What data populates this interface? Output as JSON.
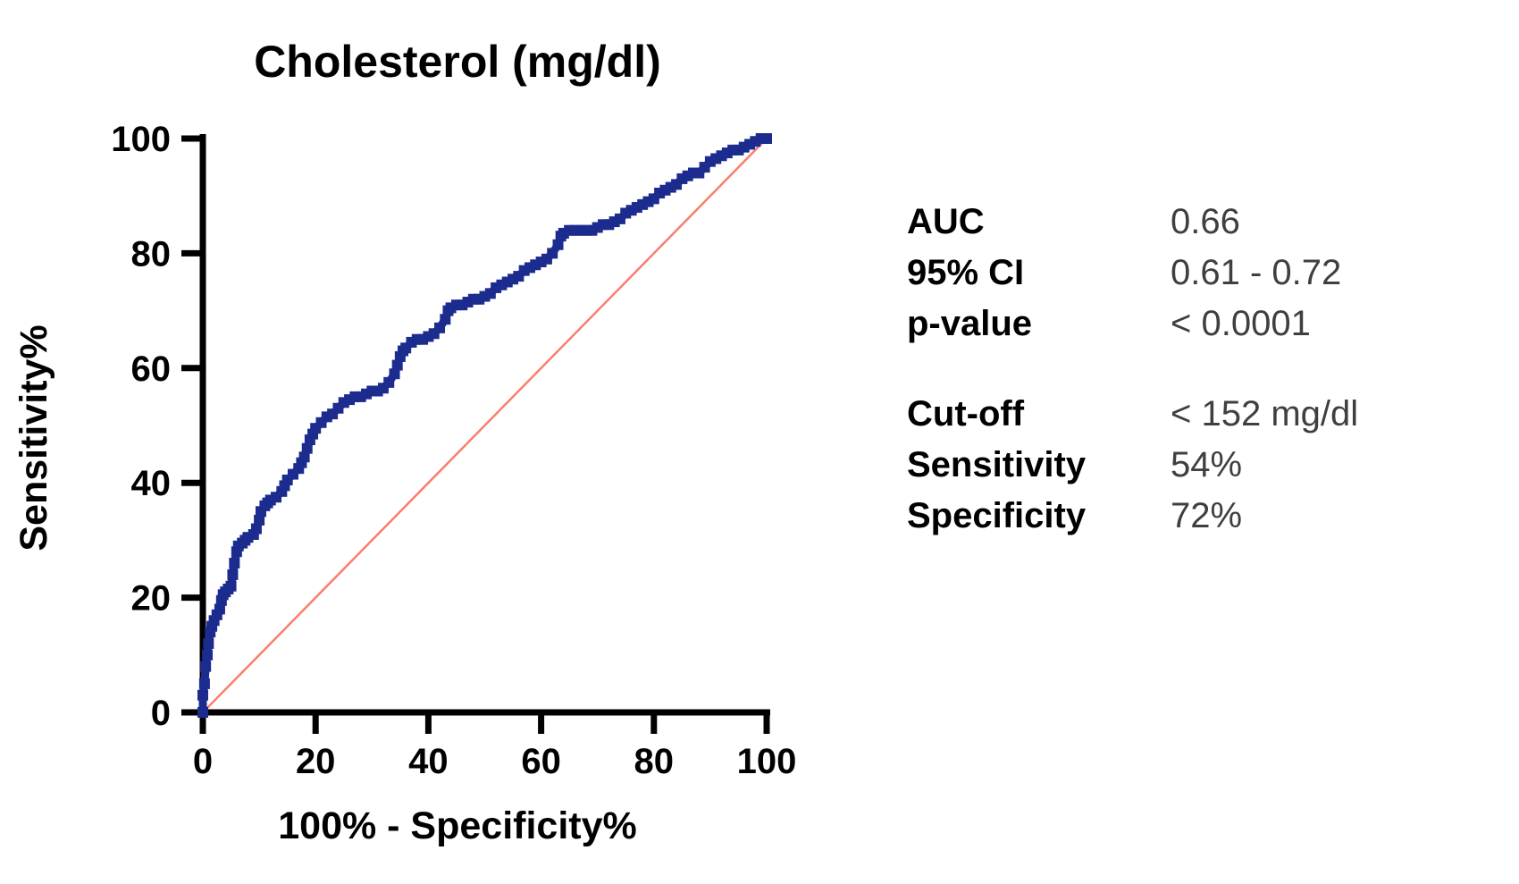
{
  "chart_data": {
    "type": "line",
    "title": "Cholesterol (mg/dl)",
    "xlabel": "100% - Specificity%",
    "ylabel": "Sensitivity%",
    "xlim": [
      0,
      100
    ],
    "ylim": [
      0,
      100
    ],
    "x_ticks": [
      0,
      20,
      40,
      60,
      80,
      100
    ],
    "y_ticks": [
      0,
      20,
      40,
      60,
      80,
      100
    ],
    "grid": false,
    "legend": "none",
    "colors": {
      "curve": "#1c2c8e",
      "reference": "#fb7e6d",
      "axis": "#000000"
    },
    "series": [
      {
        "name": "ROC curve",
        "color": "#1c2c8e",
        "style": "thick-step",
        "points": [
          [
            0,
            0
          ],
          [
            0,
            3
          ],
          [
            0.3,
            5
          ],
          [
            0.5,
            8
          ],
          [
            0.8,
            10
          ],
          [
            1,
            12
          ],
          [
            1.3,
            14
          ],
          [
            1.6,
            15
          ],
          [
            2,
            16
          ],
          [
            2.5,
            17
          ],
          [
            3,
            18
          ],
          [
            3.3,
            19.5
          ],
          [
            3.6,
            20.5
          ],
          [
            4,
            21
          ],
          [
            4.5,
            21.5
          ],
          [
            5,
            22
          ],
          [
            5.3,
            24
          ],
          [
            5.6,
            26
          ],
          [
            6,
            28
          ],
          [
            6.3,
            29
          ],
          [
            7,
            29.5
          ],
          [
            7.5,
            30
          ],
          [
            8,
            30.5
          ],
          [
            9,
            31
          ],
          [
            9.5,
            32
          ],
          [
            10,
            33.5
          ],
          [
            10.3,
            35
          ],
          [
            11,
            36
          ],
          [
            11.5,
            36.5
          ],
          [
            12,
            37
          ],
          [
            13,
            37.5
          ],
          [
            14,
            38.5
          ],
          [
            14.5,
            39.5
          ],
          [
            15,
            40.5
          ],
          [
            16,
            41.5
          ],
          [
            17,
            42.5
          ],
          [
            17.5,
            43.5
          ],
          [
            18,
            44.5
          ],
          [
            18.5,
            46
          ],
          [
            19,
            47.5
          ],
          [
            19.5,
            48.5
          ],
          [
            20,
            49.5
          ],
          [
            21,
            50.5
          ],
          [
            22,
            51.5
          ],
          [
            23,
            52
          ],
          [
            24,
            53
          ],
          [
            25,
            54
          ],
          [
            26,
            54.5
          ],
          [
            27,
            55
          ],
          [
            28,
            55
          ],
          [
            29,
            55.5
          ],
          [
            30,
            56
          ],
          [
            31,
            56
          ],
          [
            32,
            56.5
          ],
          [
            33,
            57.5
          ],
          [
            34,
            59
          ],
          [
            34.5,
            60.5
          ],
          [
            35,
            62
          ],
          [
            35.5,
            63
          ],
          [
            36,
            63.5
          ],
          [
            37,
            64.5
          ],
          [
            38,
            65
          ],
          [
            39,
            65
          ],
          [
            40,
            65.5
          ],
          [
            41,
            66
          ],
          [
            42,
            67
          ],
          [
            43,
            68.5
          ],
          [
            43.5,
            70
          ],
          [
            44,
            70.5
          ],
          [
            45,
            71
          ],
          [
            46,
            71
          ],
          [
            47,
            71.5
          ],
          [
            48,
            72
          ],
          [
            49,
            72
          ],
          [
            50,
            72.5
          ],
          [
            51,
            73
          ],
          [
            52,
            74
          ],
          [
            53,
            74.5
          ],
          [
            54,
            75
          ],
          [
            55,
            75.5
          ],
          [
            56,
            76
          ],
          [
            57,
            77
          ],
          [
            58,
            77.5
          ],
          [
            59,
            78
          ],
          [
            60,
            78.5
          ],
          [
            61,
            79
          ],
          [
            62,
            80
          ],
          [
            63,
            81.5
          ],
          [
            63.5,
            83
          ],
          [
            64,
            83.5
          ],
          [
            65,
            84
          ],
          [
            66,
            84
          ],
          [
            67,
            84
          ],
          [
            68,
            84
          ],
          [
            69,
            84
          ],
          [
            70,
            84.5
          ],
          [
            71,
            85
          ],
          [
            72,
            85
          ],
          [
            73,
            85.5
          ],
          [
            74,
            86
          ],
          [
            75,
            87
          ],
          [
            76,
            87.5
          ],
          [
            77,
            88
          ],
          [
            78,
            88.5
          ],
          [
            79,
            89
          ],
          [
            80,
            89.5
          ],
          [
            81,
            90.5
          ],
          [
            82,
            91
          ],
          [
            83,
            91.5
          ],
          [
            84,
            92
          ],
          [
            85,
            93
          ],
          [
            86,
            93.5
          ],
          [
            87,
            94
          ],
          [
            88,
            94
          ],
          [
            89,
            95
          ],
          [
            90,
            96
          ],
          [
            91,
            96.5
          ],
          [
            92,
            97
          ],
          [
            93,
            97.5
          ],
          [
            94,
            98
          ],
          [
            95,
            98
          ],
          [
            96,
            98.5
          ],
          [
            97,
            99
          ],
          [
            98,
            99.5
          ],
          [
            99,
            100
          ],
          [
            100,
            100
          ]
        ]
      },
      {
        "name": "reference diagonal",
        "color": "#fb7e6d",
        "style": "thin-line",
        "points": [
          [
            0,
            0
          ],
          [
            100,
            100
          ]
        ]
      }
    ]
  },
  "stats": {
    "rows_top": [
      {
        "label": "AUC",
        "value": "0.66"
      },
      {
        "label": "95% CI",
        "value": "0.61 - 0.72"
      },
      {
        "label": "p-value",
        "value": "< 0.0001"
      }
    ],
    "rows_bottom": [
      {
        "label": "Cut-off",
        "value": "< 152 mg/dl"
      },
      {
        "label": "Sensitivity",
        "value": "54%"
      },
      {
        "label": "Specificity",
        "value": "72%"
      }
    ]
  }
}
